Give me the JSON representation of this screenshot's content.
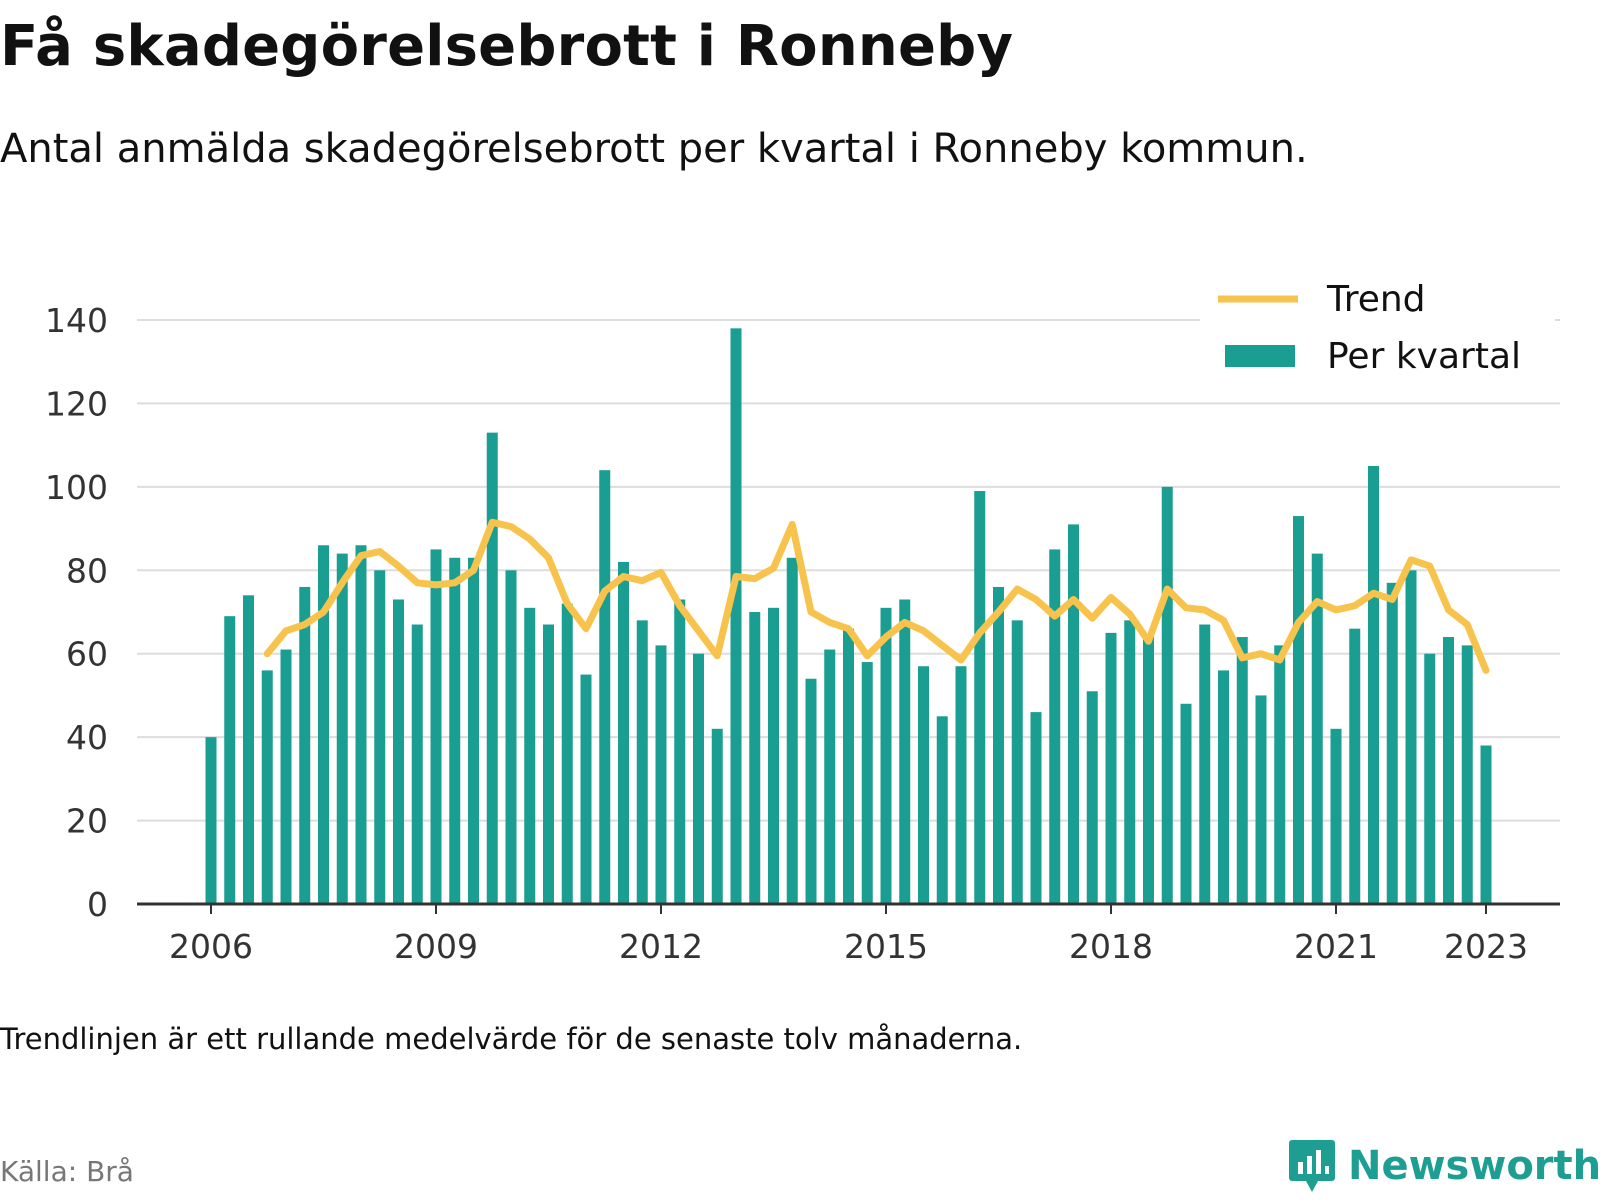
{
  "header": {
    "title": "Få skadegörelsebrott i Ronneby",
    "subtitle": "Antal anmälda skadegörelsebrott per kvartal i Ronneby kommun."
  },
  "footer": {
    "note": "Trendlinjen är ett rullande medelvärde för de senaste tolv månaderna.",
    "source": "Källa: Brå",
    "brand": "Newsworthy",
    "brand_icon": "bar-chart-speech-bubble-icon"
  },
  "colors": {
    "bars": "#1a9e92",
    "trend": "#f8c34c",
    "grid": "#dddddd",
    "axis": "#333333",
    "brand": "#1e9e92"
  },
  "chart_data": {
    "type": "bar",
    "x_start": "2006 Q1",
    "x_ticks": [
      "2006",
      "2009",
      "2012",
      "2015",
      "2018",
      "2021",
      "2023"
    ],
    "ylim": [
      0,
      140
    ],
    "y_ticks": [
      "0",
      "20",
      "40",
      "60",
      "80",
      "100",
      "120",
      "140"
    ],
    "grid": true,
    "legend_position": "top-right",
    "series": [
      {
        "name": "Per kvartal",
        "kind": "bar",
        "values": [
          40,
          69,
          74,
          56,
          61,
          76,
          86,
          84,
          86,
          80,
          73,
          67,
          85,
          83,
          83,
          113,
          80,
          71,
          67,
          72,
          55,
          104,
          82,
          68,
          62,
          73,
          60,
          42,
          138,
          70,
          71,
          83,
          54,
          61,
          66,
          58,
          71,
          73,
          57,
          45,
          57,
          99,
          76,
          68,
          46,
          85,
          91,
          51,
          65,
          68,
          64,
          100,
          48,
          67,
          56,
          64,
          50,
          62,
          93,
          84,
          42,
          66,
          105,
          77,
          80,
          60,
          64,
          62,
          38
        ]
      },
      {
        "name": "Trend",
        "kind": "line",
        "values": [
          null,
          null,
          null,
          60,
          65.5,
          67,
          70,
          77,
          83.5,
          84.5,
          81,
          77,
          76.5,
          77,
          80,
          91.5,
          90.5,
          87.5,
          83,
          72,
          66,
          75,
          78.5,
          77.5,
          79.5,
          71.5,
          65.5,
          59.5,
          78.5,
          78,
          80.5,
          91,
          70,
          67.5,
          66,
          59.5,
          64,
          67.5,
          65.5,
          62,
          58.5,
          65,
          70,
          75.5,
          73,
          69,
          73,
          68.5,
          73.5,
          69.5,
          63,
          75.5,
          71,
          70.5,
          68,
          59,
          60,
          58.5,
          67.5,
          72.5,
          70.5,
          71.5,
          74.5,
          73,
          82.5,
          81,
          70.5,
          67,
          56
        ]
      }
    ]
  }
}
